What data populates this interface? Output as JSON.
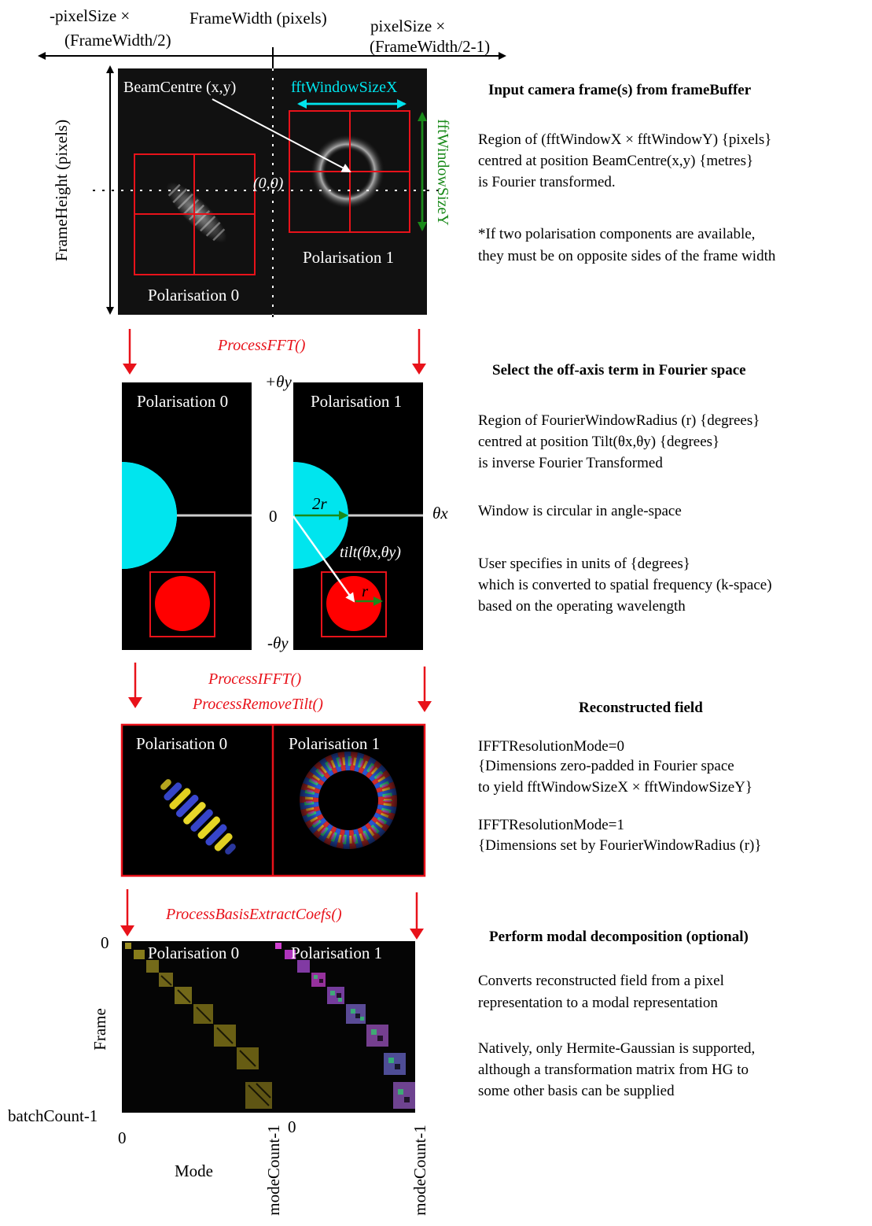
{
  "top_labels": {
    "neg_pixel_line1": "-pixelSize ×",
    "neg_pixel_line2": "(FrameWidth/2)",
    "frame_width": "FrameWidth (pixels)",
    "pos_pixel_line1": "pixelSize ×",
    "pos_pixel_line2": "(FrameWidth/2-1)",
    "frame_height": "FrameHeight (pixels)"
  },
  "camera_panel": {
    "beam_centre": "BeamCentre (x,y)",
    "fft_window_x": "fftWindowSizeX",
    "fft_window_y": "fftWindowSizeY",
    "origin": "(0,0)",
    "pol0": "Polarisation 0",
    "pol1": "Polarisation 1"
  },
  "fourier_panel": {
    "pol0": "Polarisation 0",
    "pol1": "Polarisation 1",
    "plus_theta_y": "+θy",
    "minus_theta_y": "-θy",
    "zero": "0",
    "theta_x": "θx",
    "two_r": "2r",
    "r": "r",
    "tilt": "tilt(θx,θy)"
  },
  "recon_panel": {
    "pol0": "Polarisation 0",
    "pol1": "Polarisation 1"
  },
  "modal_panel": {
    "pol0": "Polarisation 0",
    "pol1": "Polarisation 1",
    "y_zero": "0",
    "y_label": "Frame",
    "y_end": "batchCount-1",
    "x_zero_left": "0",
    "x_zero_right": "0",
    "x_label": "Mode",
    "x_end_left": "modeCount-1",
    "x_end_right": "modeCount-1"
  },
  "functions": {
    "fft": "ProcessFFT()",
    "ifft": "ProcessIFFT()",
    "remove_tilt": "ProcessRemoveTilt()",
    "basis": "ProcessBasisExtractCoefs()"
  },
  "sections": [
    {
      "heading": "Input camera frame(s) from frameBuffer",
      "lines": [
        "Region of (fftWindowX × fftWindowY) {pixels}",
        "centred at position BeamCentre(x,y) {metres}",
        "is Fourier transformed.",
        "",
        "*If two polarisation components are available,",
        "they must be on opposite sides of the frame width"
      ]
    },
    {
      "heading": "Select the off-axis term in Fourier space",
      "lines": [
        "Region of FourierWindowRadius (r) {degrees}",
        "centred at position Tilt(θx,θy) {degrees}",
        "is inverse Fourier Transformed",
        "",
        "Window is circular in angle-space",
        "",
        "User specifies in units of {degrees}",
        "which is converted to spatial frequency (k-space)",
        "based on the operating wavelength"
      ]
    },
    {
      "heading": "Reconstructed field",
      "lines": [
        "IFFTResolutionMode=0",
        "{Dimensions zero-padded in Fourier space",
        "to yield fftWindowSizeX × fftWindowSizeY}",
        "",
        "IFFTResolutionMode=1",
        "{Dimensions set by FourierWindowRadius (r)}"
      ]
    },
    {
      "heading": "Perform modal decomposition (optional)",
      "lines": [
        "Converts reconstructed field from a pixel",
        "representation to a modal representation",
        "",
        "Natively, only Hermite-Gaussian is supported,",
        "although a transformation matrix from HG to",
        "some other basis can be supplied"
      ]
    }
  ],
  "colors": {
    "red": "#e8121a",
    "cyan": "#00e5ee",
    "green": "#1a8a1a",
    "black": "#000000"
  }
}
